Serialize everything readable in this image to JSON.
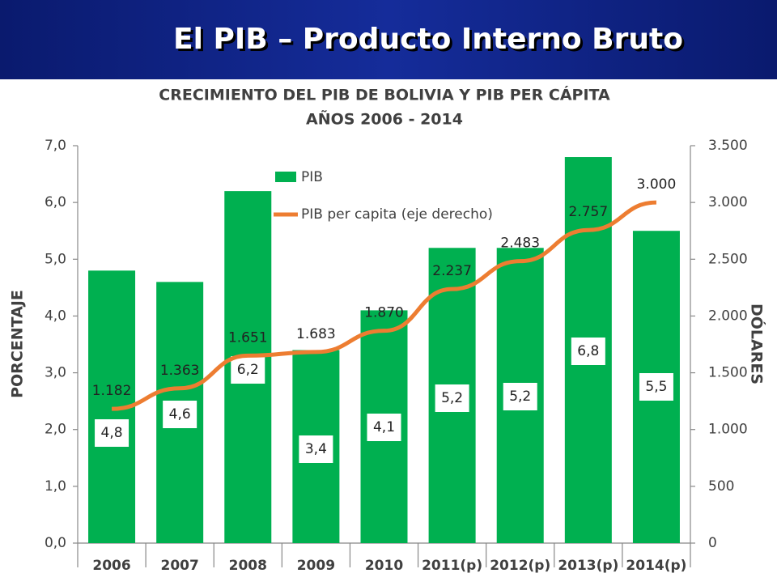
{
  "header": {
    "title": "El PIB – Producto Interno Bruto"
  },
  "chart_data": {
    "type": "bar_line",
    "title": "CRECIMIENTO DEL PIB DE BOLIVIA Y PIB PER CÁPITA",
    "subtitle": "AÑOS 2006 - 2014",
    "ylabel": "PORCENTAJE",
    "y2label": "DÓLARES",
    "categories": [
      "2006",
      "2007",
      "2008",
      "2009",
      "2010",
      "2011(p)",
      "2012(p)",
      "2013(p)",
      "2014(p)"
    ],
    "series": [
      {
        "name": "PIB",
        "type": "bar",
        "color": "#00b050",
        "values": [
          4.8,
          4.6,
          6.2,
          3.4,
          4.1,
          5.2,
          5.2,
          6.8,
          5.5
        ],
        "value_labels": [
          "4,8",
          "4,6",
          "6,2",
          "3,4",
          "4,1",
          "5,2",
          "5,2",
          "6,8",
          "5,5"
        ]
      },
      {
        "name": "PIB per capita (eje derecho)",
        "type": "line",
        "axis": "y2",
        "color": "#ed7d31",
        "values": [
          1182,
          1363,
          1651,
          1683,
          1870,
          2237,
          2483,
          2757,
          3000
        ],
        "value_labels": [
          "1.182",
          "1.363",
          "1.651",
          "1.683",
          "1.870",
          "2.237",
          "2.483",
          "2.757",
          "3.000"
        ]
      }
    ],
    "ylim": [
      0,
      7
    ],
    "yticks": [
      {
        "value": 0,
        "label": "0,0"
      },
      {
        "value": 1,
        "label": "1,0"
      },
      {
        "value": 2,
        "label": "2,0"
      },
      {
        "value": 3,
        "label": "3,0"
      },
      {
        "value": 4,
        "label": "4,0"
      },
      {
        "value": 5,
        "label": "5,0"
      },
      {
        "value": 6,
        "label": "6,0"
      },
      {
        "value": 7,
        "label": "7,0"
      }
    ],
    "y2lim": [
      0,
      3500
    ],
    "y2ticks": [
      0,
      500,
      {
        "value": 1000,
        "label": "1.000"
      },
      {
        "value": 1500,
        "label": "1.500"
      },
      {
        "value": 2000,
        "label": "2.000"
      },
      {
        "value": 2500,
        "label": "2.500"
      },
      {
        "value": 3000,
        "label": "3.000"
      },
      {
        "value": 3500,
        "label": "3.500"
      }
    ]
  }
}
